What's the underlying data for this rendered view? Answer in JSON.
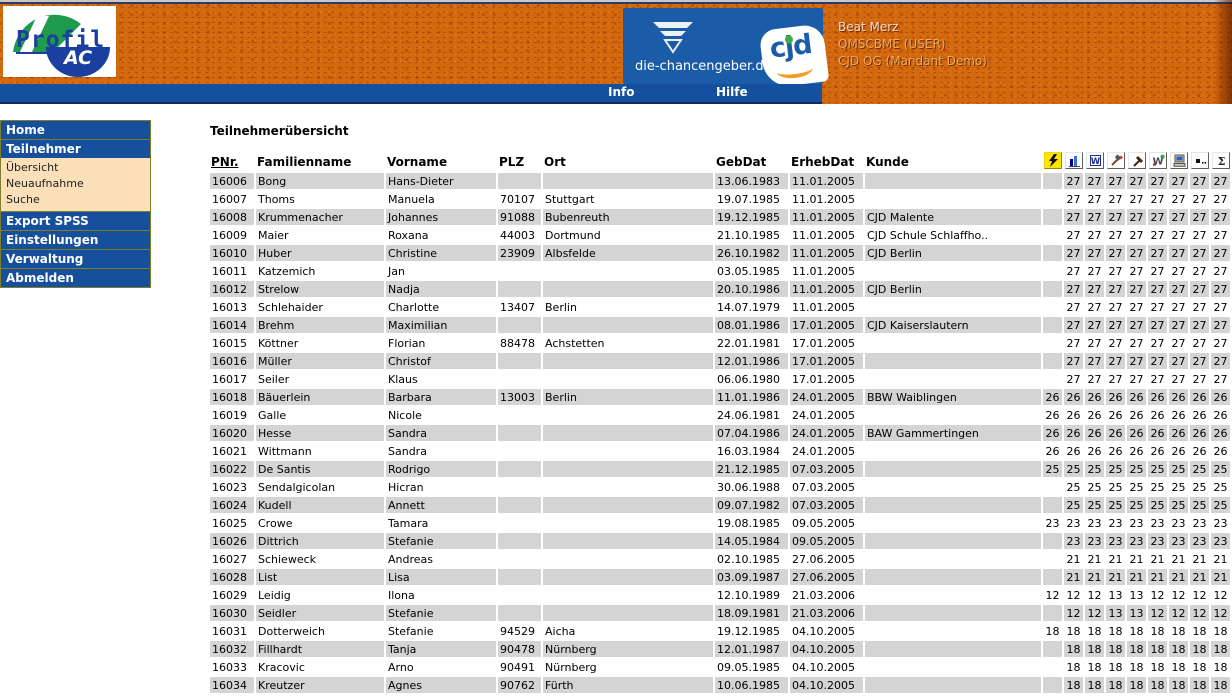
{
  "colors": {
    "accent_blue": "#1A5CA8",
    "menu_blue": "#15509E",
    "header_orange": "#D2690F",
    "row_gray": "#D4D4D4",
    "submenu_peach": "#FBDFB9",
    "flash_yellow": "#FFE400",
    "olive_border": "#7F7F29"
  },
  "header": {
    "logo": {
      "line1": "Profil",
      "line2": "AC"
    },
    "portal": {
      "domain": "die-chancengeber.de",
      "brand": "cjd"
    },
    "user": {
      "name": "Beat Merz",
      "role": "QMSCBME (USER)",
      "client": "CJD OG (Mandant Demo)"
    },
    "menu": [
      {
        "label": "Info"
      },
      {
        "label": "Hilfe"
      }
    ]
  },
  "sidebar": {
    "items": [
      {
        "label": "Home",
        "type": "main"
      },
      {
        "label": "Teilnehmer",
        "type": "main"
      },
      {
        "label": "Übersicht",
        "type": "sub"
      },
      {
        "label": "Neuaufnahme",
        "type": "sub"
      },
      {
        "label": "Suche",
        "type": "sub"
      },
      {
        "label": "Export SPSS",
        "type": "main"
      },
      {
        "label": "Einstellungen",
        "type": "main"
      },
      {
        "label": "Verwaltung",
        "type": "main"
      },
      {
        "label": "Abmelden",
        "type": "main"
      }
    ]
  },
  "main": {
    "title": "Teilnehmerübersicht",
    "table": {
      "columns": [
        "PNr.",
        "Familienname",
        "Vorname",
        "PLZ",
        "Ort",
        "GebDat",
        "ErhebDat",
        "Kunde"
      ],
      "icon_columns": [
        "flash-icon",
        "bar-chart-icon",
        "word-document-icon",
        "tools-icon",
        "hammer-icon",
        "chart-wizard-icon",
        "computer-icon",
        "dots-icon",
        "sigma-icon"
      ],
      "rows": [
        {
          "pnr": "16006",
          "familienname": "Bong",
          "vorname": "Hans-Dieter",
          "plz": "",
          "ort": "",
          "gebdat": "13.06.1983",
          "erhebdat": "11.01.2005",
          "kunde": "",
          "values": [
            "",
            "27",
            "27",
            "27",
            "27",
            "27",
            "27",
            "27",
            "27"
          ]
        },
        {
          "pnr": "16007",
          "familienname": "Thoms",
          "vorname": "Manuela",
          "plz": "70107",
          "ort": "Stuttgart",
          "gebdat": "19.07.1985",
          "erhebdat": "11.01.2005",
          "kunde": "",
          "values": [
            "",
            "27",
            "27",
            "27",
            "27",
            "27",
            "27",
            "27",
            "27"
          ]
        },
        {
          "pnr": "16008",
          "familienname": "Krummenacher",
          "vorname": "Johannes",
          "plz": "91088",
          "ort": "Bubenreuth",
          "gebdat": "19.12.1985",
          "erhebdat": "11.01.2005",
          "kunde": "CJD Malente",
          "values": [
            "",
            "27",
            "27",
            "27",
            "27",
            "27",
            "27",
            "27",
            "27"
          ]
        },
        {
          "pnr": "16009",
          "familienname": "Maier",
          "vorname": "Roxana",
          "plz": "44003",
          "ort": "Dortmund",
          "gebdat": "21.10.1985",
          "erhebdat": "11.01.2005",
          "kunde": "CJD Schule Schlaffho..",
          "values": [
            "",
            "27",
            "27",
            "27",
            "27",
            "27",
            "27",
            "27",
            "27"
          ]
        },
        {
          "pnr": "16010",
          "familienname": "Huber",
          "vorname": "Christine",
          "plz": "23909",
          "ort": "Albsfelde",
          "gebdat": "26.10.1982",
          "erhebdat": "11.01.2005",
          "kunde": "CJD Berlin",
          "values": [
            "",
            "27",
            "27",
            "27",
            "27",
            "27",
            "27",
            "27",
            "27"
          ]
        },
        {
          "pnr": "16011",
          "familienname": "Katzemich",
          "vorname": "Jan",
          "plz": "",
          "ort": "",
          "gebdat": "03.05.1985",
          "erhebdat": "11.01.2005",
          "kunde": "",
          "values": [
            "",
            "27",
            "27",
            "27",
            "27",
            "27",
            "27",
            "27",
            "27"
          ]
        },
        {
          "pnr": "16012",
          "familienname": "Strelow",
          "vorname": "Nadja",
          "plz": "",
          "ort": "",
          "gebdat": "20.10.1986",
          "erhebdat": "11.01.2005",
          "kunde": "CJD Berlin",
          "values": [
            "",
            "27",
            "27",
            "27",
            "27",
            "27",
            "27",
            "27",
            "27"
          ]
        },
        {
          "pnr": "16013",
          "familienname": "Schlehaider",
          "vorname": "Charlotte",
          "plz": "13407",
          "ort": "Berlin",
          "gebdat": "14.07.1979",
          "erhebdat": "11.01.2005",
          "kunde": "",
          "values": [
            "",
            "27",
            "27",
            "27",
            "27",
            "27",
            "27",
            "27",
            "27"
          ]
        },
        {
          "pnr": "16014",
          "familienname": "Brehm",
          "vorname": "Maximilian",
          "plz": "",
          "ort": "",
          "gebdat": "08.01.1986",
          "erhebdat": "17.01.2005",
          "kunde": "CJD Kaiserslautern",
          "values": [
            "",
            "27",
            "27",
            "27",
            "27",
            "27",
            "27",
            "27",
            "27"
          ]
        },
        {
          "pnr": "16015",
          "familienname": "Köttner",
          "vorname": "Florian",
          "plz": "88478",
          "ort": "Achstetten",
          "gebdat": "22.01.1981",
          "erhebdat": "17.01.2005",
          "kunde": "",
          "values": [
            "",
            "27",
            "27",
            "27",
            "27",
            "27",
            "27",
            "27",
            "27"
          ]
        },
        {
          "pnr": "16016",
          "familienname": "Müller",
          "vorname": "Christof",
          "plz": "",
          "ort": "",
          "gebdat": "12.01.1986",
          "erhebdat": "17.01.2005",
          "kunde": "",
          "values": [
            "",
            "27",
            "27",
            "27",
            "27",
            "27",
            "27",
            "27",
            "27"
          ]
        },
        {
          "pnr": "16017",
          "familienname": "Seiler",
          "vorname": "Klaus",
          "plz": "",
          "ort": "",
          "gebdat": "06.06.1980",
          "erhebdat": "17.01.2005",
          "kunde": "",
          "values": [
            "",
            "27",
            "27",
            "27",
            "27",
            "27",
            "27",
            "27",
            "27"
          ]
        },
        {
          "pnr": "16018",
          "familienname": "Bäuerlein",
          "vorname": "Barbara",
          "plz": "13003",
          "ort": "Berlin",
          "gebdat": "11.01.1986",
          "erhebdat": "24.01.2005",
          "kunde": "BBW Waiblingen",
          "values": [
            "26",
            "26",
            "26",
            "26",
            "26",
            "26",
            "26",
            "26",
            "26"
          ]
        },
        {
          "pnr": "16019",
          "familienname": "Galle",
          "vorname": "Nicole",
          "plz": "",
          "ort": "",
          "gebdat": "24.06.1981",
          "erhebdat": "24.01.2005",
          "kunde": "",
          "values": [
            "26",
            "26",
            "26",
            "26",
            "26",
            "26",
            "26",
            "26",
            "26"
          ]
        },
        {
          "pnr": "16020",
          "familienname": "Hesse",
          "vorname": "Sandra",
          "plz": "",
          "ort": "",
          "gebdat": "07.04.1986",
          "erhebdat": "24.01.2005",
          "kunde": "BAW Gammertingen",
          "values": [
            "26",
            "26",
            "26",
            "26",
            "26",
            "26",
            "26",
            "26",
            "26"
          ]
        },
        {
          "pnr": "16021",
          "familienname": "Wittmann",
          "vorname": "Sandra",
          "plz": "",
          "ort": "",
          "gebdat": "16.03.1984",
          "erhebdat": "24.01.2005",
          "kunde": "",
          "values": [
            "26",
            "26",
            "26",
            "26",
            "26",
            "26",
            "26",
            "26",
            "26"
          ]
        },
        {
          "pnr": "16022",
          "familienname": "De Santis",
          "vorname": "Rodrigo",
          "plz": "",
          "ort": "",
          "gebdat": "21.12.1985",
          "erhebdat": "07.03.2005",
          "kunde": "",
          "values": [
            "25",
            "25",
            "25",
            "25",
            "25",
            "25",
            "25",
            "25",
            "25"
          ]
        },
        {
          "pnr": "16023",
          "familienname": "Sendalgicolan",
          "vorname": "Hicran",
          "plz": "",
          "ort": "",
          "gebdat": "30.06.1988",
          "erhebdat": "07.03.2005",
          "kunde": "",
          "values": [
            "",
            "25",
            "25",
            "25",
            "25",
            "25",
            "25",
            "25",
            "25"
          ]
        },
        {
          "pnr": "16024",
          "familienname": "Kudell",
          "vorname": "Annett",
          "plz": "",
          "ort": "",
          "gebdat": "09.07.1982",
          "erhebdat": "07.03.2005",
          "kunde": "",
          "values": [
            "",
            "25",
            "25",
            "25",
            "25",
            "25",
            "25",
            "25",
            "25"
          ]
        },
        {
          "pnr": "16025",
          "familienname": "Crowe",
          "vorname": "Tamara",
          "plz": "",
          "ort": "",
          "gebdat": "19.08.1985",
          "erhebdat": "09.05.2005",
          "kunde": "",
          "values": [
            "23",
            "23",
            "23",
            "23",
            "23",
            "23",
            "23",
            "23",
            "23"
          ]
        },
        {
          "pnr": "16026",
          "familienname": "Dittrich",
          "vorname": "Stefanie",
          "plz": "",
          "ort": "",
          "gebdat": "14.05.1984",
          "erhebdat": "09.05.2005",
          "kunde": "",
          "values": [
            "",
            "23",
            "23",
            "23",
            "23",
            "23",
            "23",
            "23",
            "23"
          ]
        },
        {
          "pnr": "16027",
          "familienname": "Schieweck",
          "vorname": "Andreas",
          "plz": "",
          "ort": "",
          "gebdat": "02.10.1985",
          "erhebdat": "27.06.2005",
          "kunde": "",
          "values": [
            "",
            "21",
            "21",
            "21",
            "21",
            "21",
            "21",
            "21",
            "21"
          ]
        },
        {
          "pnr": "16028",
          "familienname": "List",
          "vorname": "Lisa",
          "plz": "",
          "ort": "",
          "gebdat": "03.09.1987",
          "erhebdat": "27.06.2005",
          "kunde": "",
          "values": [
            "",
            "21",
            "21",
            "21",
            "21",
            "21",
            "21",
            "21",
            "21"
          ]
        },
        {
          "pnr": "16029",
          "familienname": "Leidig",
          "vorname": "Ilona",
          "plz": "",
          "ort": "",
          "gebdat": "12.10.1989",
          "erhebdat": "21.03.2006",
          "kunde": "",
          "values": [
            "12",
            "12",
            "12",
            "13",
            "13",
            "12",
            "12",
            "12",
            "12"
          ]
        },
        {
          "pnr": "16030",
          "familienname": "Seidler",
          "vorname": "Stefanie",
          "plz": "",
          "ort": "",
          "gebdat": "18.09.1981",
          "erhebdat": "21.03.2006",
          "kunde": "",
          "values": [
            "",
            "12",
            "12",
            "13",
            "13",
            "12",
            "12",
            "12",
            "12"
          ]
        },
        {
          "pnr": "16031",
          "familienname": "Dotterweich",
          "vorname": "Stefanie",
          "plz": "94529",
          "ort": "Aicha",
          "gebdat": "19.12.1985",
          "erhebdat": "04.10.2005",
          "kunde": "",
          "values": [
            "18",
            "18",
            "18",
            "18",
            "18",
            "18",
            "18",
            "18",
            "18"
          ]
        },
        {
          "pnr": "16032",
          "familienname": "Fillhardt",
          "vorname": "Tanja",
          "plz": "90478",
          "ort": "Nürnberg",
          "gebdat": "12.01.1987",
          "erhebdat": "04.10.2005",
          "kunde": "",
          "values": [
            "",
            "18",
            "18",
            "18",
            "18",
            "18",
            "18",
            "18",
            "18"
          ]
        },
        {
          "pnr": "16033",
          "familienname": "Kracovic",
          "vorname": "Arno",
          "plz": "90491",
          "ort": "Nürnberg",
          "gebdat": "09.05.1985",
          "erhebdat": "04.10.2005",
          "kunde": "",
          "values": [
            "",
            "18",
            "18",
            "18",
            "18",
            "18",
            "18",
            "18",
            "18"
          ]
        },
        {
          "pnr": "16034",
          "familienname": "Kreutzer",
          "vorname": "Agnes",
          "plz": "90762",
          "ort": "Fürth",
          "gebdat": "10.06.1985",
          "erhebdat": "04.10.2005",
          "kunde": "",
          "values": [
            "",
            "18",
            "18",
            "18",
            "18",
            "18",
            "18",
            "18",
            "18"
          ]
        }
      ]
    }
  }
}
